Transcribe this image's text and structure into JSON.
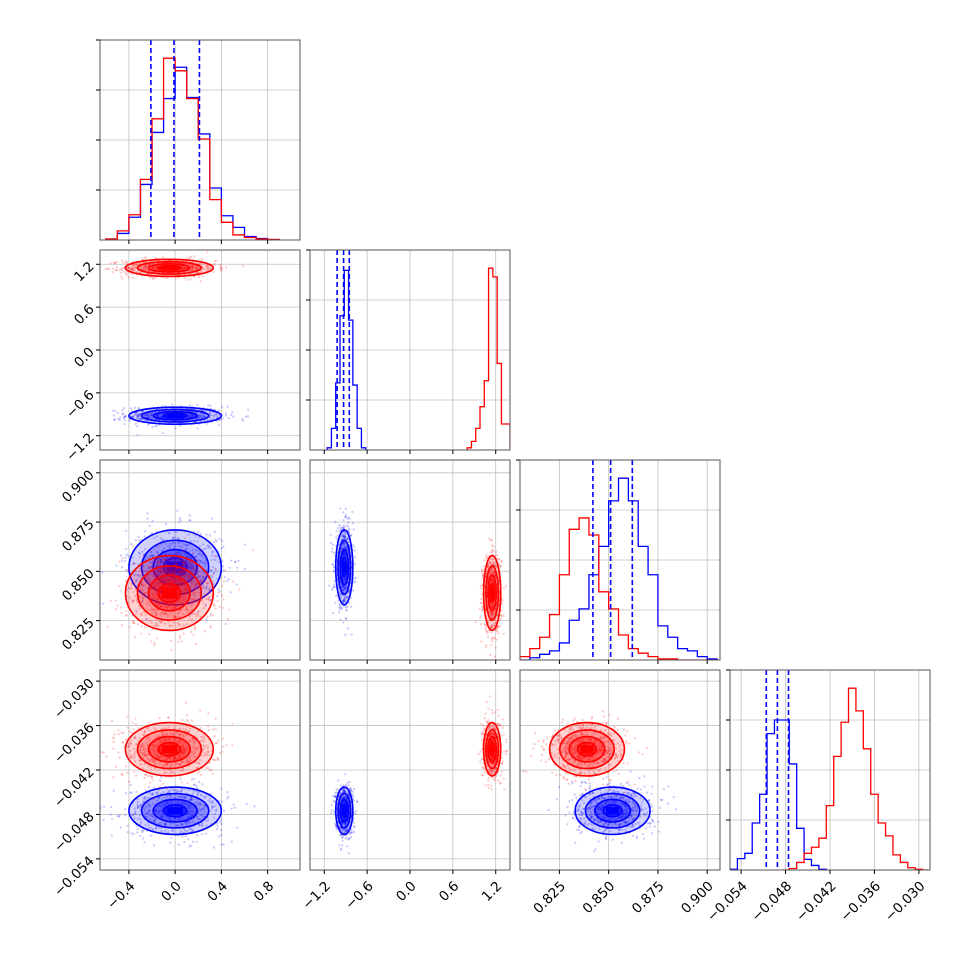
{
  "colors": {
    "series_a": "#0000ff",
    "series_b": "#ff0000",
    "grid": "#c0c0c0",
    "frame": "#555555"
  },
  "chart_data": {
    "type": "corner",
    "grid": true,
    "parameters": [
      {
        "range": [
          -0.65,
          1.08
        ],
        "ticks": [
          -0.4,
          0.0,
          0.4,
          0.8
        ],
        "tick_labels": [
          "−0.4",
          "0.0",
          "0.4",
          "0.8"
        ]
      },
      {
        "range": [
          -1.4,
          1.4
        ],
        "ticks": [
          -1.2,
          -0.6,
          0.0,
          0.6,
          1.2
        ],
        "tick_labels": [
          "−1.2",
          "−0.6",
          "0.0",
          "0.6",
          "1.2"
        ]
      },
      {
        "range": [
          0.805,
          0.9065
        ],
        "ticks": [
          0.825,
          0.85,
          0.875,
          0.9
        ],
        "tick_labels": [
          "0.825",
          "0.850",
          "0.875",
          "0.900"
        ]
      },
      {
        "range": [
          -0.0555,
          -0.0285
        ],
        "ticks": [
          -0.054,
          -0.048,
          -0.042,
          -0.036,
          -0.03
        ],
        "tick_labels": [
          "−0.054",
          "−0.048",
          "−0.042",
          "−0.036",
          "−0.030"
        ]
      }
    ],
    "series": [
      {
        "color_key": "series_a",
        "mean": [
          0.0,
          -0.92,
          0.852,
          -0.0475
        ],
        "std": [
          0.2,
          0.06,
          0.0095,
          0.0016
        ],
        "quantiles": [
          [
            -0.21,
            -0.01,
            0.21
          ],
          [
            -1.02,
            -0.93,
            -0.85
          ],
          [
            0.842,
            0.851,
            0.862
          ],
          [
            -0.0506,
            -0.0491,
            -0.0476
          ]
        ],
        "hist": [
          {
            "x": [
              -0.6,
              -0.5,
              -0.4,
              -0.3,
              -0.2,
              -0.1,
              0.0,
              0.1,
              0.2,
              0.3,
              0.4,
              0.5,
              0.6,
              0.7,
              0.8
            ],
            "y": [
              2,
              13,
              45,
              110,
              213,
              280,
              342,
              282,
              210,
              103,
              48,
              25,
              7,
              3,
              1
            ]
          },
          {
            "x": [
              -1.16,
              -1.1,
              -1.04,
              -0.98,
              -0.92,
              -0.86,
              -0.8,
              -0.74,
              -0.68
            ],
            "y": [
              5,
              50,
              155,
              310,
              415,
              300,
              150,
              50,
              5
            ]
          },
          {
            "x": [
              0.805,
              0.81,
              0.815,
              0.82,
              0.825,
              0.83,
              0.835,
              0.84,
              0.845,
              0.85,
              0.855,
              0.86,
              0.865,
              0.87,
              0.875,
              0.88,
              0.885,
              0.89,
              0.895,
              0.9
            ],
            "y": [
              0,
              2,
              5,
              8,
              15,
              35,
              45,
              75,
              100,
              140,
              160,
              140,
              100,
              75,
              30,
              20,
              10,
              8,
              3,
              1
            ]
          },
          {
            "x": [
              -0.0555,
              -0.0545,
              -0.0535,
              -0.0525,
              -0.0515,
              -0.0505,
              -0.0495,
              -0.0485,
              -0.0475,
              -0.0465,
              -0.0455,
              -0.0445,
              -0.0435
            ],
            "y": [
              1,
              15,
              22,
              62,
              100,
              180,
              198,
              198,
              140,
              55,
              14,
              6,
              1
            ]
          }
        ]
      },
      {
        "color_key": "series_b",
        "mean": [
          -0.05,
          1.15,
          0.839,
          -0.0392
        ],
        "std": [
          0.19,
          0.06,
          0.0095,
          0.0018
        ],
        "quantiles": [],
        "hist": [
          {
            "x": [
              -0.6,
              -0.5,
              -0.4,
              -0.3,
              -0.2,
              -0.1,
              0.0,
              0.1,
              0.2,
              0.3,
              0.4,
              0.5,
              0.6,
              0.7,
              0.8
            ],
            "y": [
              2,
              18,
              50,
              120,
              240,
              360,
              335,
              280,
              200,
              80,
              35,
              10,
              5,
              2,
              1
            ]
          },
          {
            "x": [
              0.8,
              0.86,
              0.92,
              0.98,
              1.04,
              1.1,
              1.16,
              1.22,
              1.28,
              1.34
            ],
            "y": [
              5,
              20,
              50,
              100,
              160,
              420,
              400,
              200,
              60,
              60
            ]
          },
          {
            "x": [
              0.805,
              0.81,
              0.815,
              0.82,
              0.825,
              0.83,
              0.835,
              0.84,
              0.845,
              0.85,
              0.855,
              0.86,
              0.865,
              0.87,
              0.875,
              0.88,
              0.885,
              0.89,
              0.895,
              0.9
            ],
            "y": [
              3,
              10,
              20,
              40,
              75,
              115,
              125,
              110,
              60,
              45,
              22,
              10,
              6,
              3,
              1,
              1,
              0,
              0,
              0,
              0
            ]
          },
          {
            "x": [
              -0.0485,
              -0.0475,
              -0.0465,
              -0.0455,
              -0.0445,
              -0.0435,
              -0.0425,
              -0.0415,
              -0.0405,
              -0.0395,
              -0.0385,
              -0.0375,
              -0.0365,
              -0.0355,
              -0.0345,
              -0.0335,
              -0.0325,
              -0.0315,
              -0.0305,
              -0.0295
            ],
            "y": [
              0,
              2,
              10,
              22,
              30,
              42,
              85,
              150,
              195,
              240,
              210,
              160,
              100,
              62,
              45,
              20,
              10,
              3,
              1,
              0
            ]
          }
        ]
      }
    ]
  }
}
